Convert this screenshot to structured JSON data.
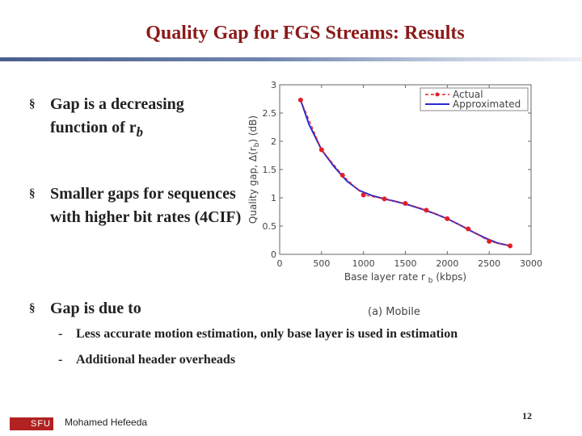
{
  "slide": {
    "title": "Quality Gap for FGS Streams: Results",
    "bullet_mark": "§",
    "bullets": [
      {
        "text": "Gap is a decreasing function of r",
        "sub": "b"
      },
      {
        "text": "Smaller gaps for sequences with higher bit rates (4CIF)"
      },
      {
        "text": "Gap is due to"
      }
    ],
    "sub_bullets": [
      "Less accurate motion estimation, only base layer is used in estimation",
      "Additional header overheads"
    ],
    "dash": "-",
    "footer": {
      "author": "Mohamed Hefeeda",
      "page": "12",
      "logo_text": "SFU"
    },
    "caption": "(a) Mobile",
    "colors": {
      "title": "#8b1a1a",
      "actual": "#e0202a",
      "approx": "#2a2acf",
      "logo": "#b22222"
    }
  },
  "chart_data": {
    "type": "line",
    "xlabel": "Base layer rate r",
    "xlabel_sub": "b",
    "xlabel_unit": "(kbps)",
    "ylabel": "Quality gap, Δ(r",
    "ylabel_sub": "b",
    "ylabel_tail": ") (dB)",
    "xlim": [
      0,
      3000
    ],
    "ylim": [
      0,
      3
    ],
    "xticks": [
      "0",
      "500",
      "1000",
      "1500",
      "2000",
      "2500",
      "3000"
    ],
    "yticks": [
      "0",
      "0.5",
      "1",
      "1.5",
      "2",
      "2.5",
      "3"
    ],
    "legend_position": "top-right",
    "series": [
      {
        "name": "Actual",
        "style": "dashed-markers",
        "x": [
          250,
          500,
          750,
          1000,
          1250,
          1500,
          1750,
          2000,
          2250,
          2500,
          2750
        ],
        "y": [
          2.73,
          1.85,
          1.4,
          1.05,
          0.98,
          0.9,
          0.78,
          0.63,
          0.45,
          0.23,
          0.15
        ]
      },
      {
        "name": "Approximated",
        "style": "solid",
        "x": [
          250,
          350,
          500,
          650,
          800,
          950,
          1100,
          1250,
          1400,
          1550,
          1700,
          1850,
          2000,
          2150,
          2300,
          2450,
          2600,
          2750
        ],
        "y": [
          2.73,
          2.3,
          1.85,
          1.55,
          1.3,
          1.13,
          1.04,
          0.98,
          0.93,
          0.87,
          0.8,
          0.72,
          0.63,
          0.52,
          0.4,
          0.29,
          0.2,
          0.15
        ]
      }
    ]
  }
}
